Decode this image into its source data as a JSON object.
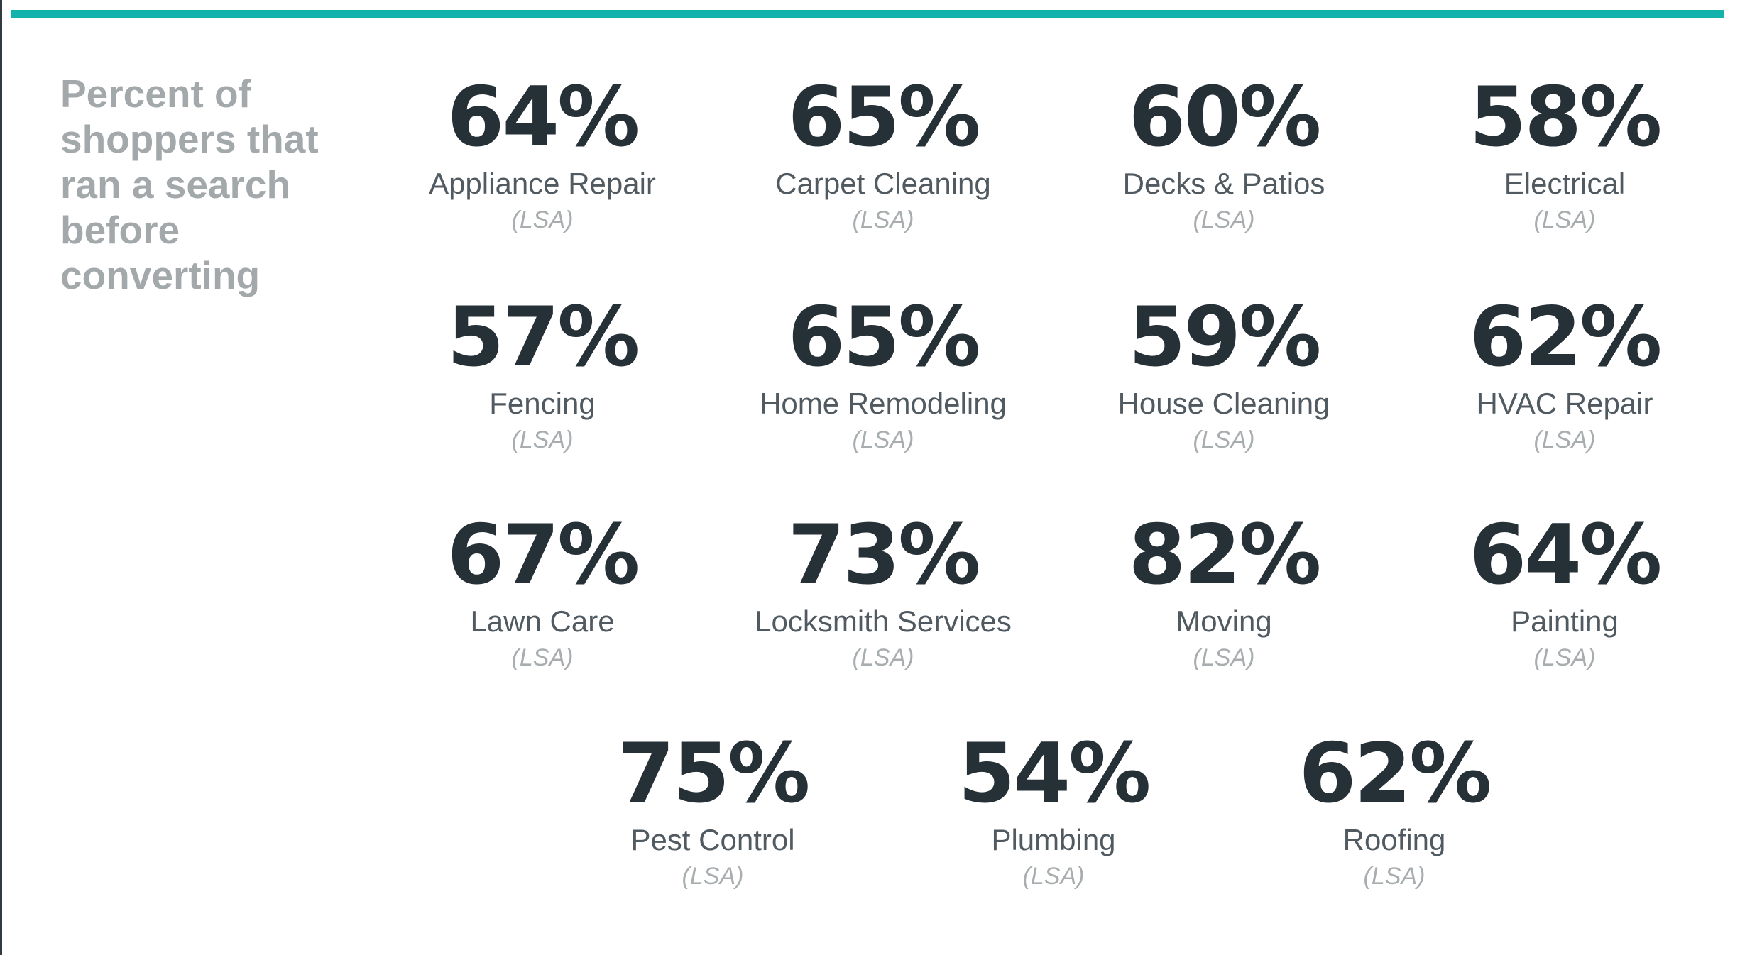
{
  "heading": "Percent of shoppers that ran a search before converting",
  "accent_color": "#13b3ad",
  "stats": [
    {
      "value": "64%",
      "label": "Appliance Repair",
      "note": "(LSA)"
    },
    {
      "value": "65%",
      "label": "Carpet Cleaning",
      "note": "(LSA)"
    },
    {
      "value": "60%",
      "label": "Decks & Patios",
      "note": "(LSA)"
    },
    {
      "value": "58%",
      "label": "Electrical",
      "note": "(LSA)"
    },
    {
      "value": "57%",
      "label": "Fencing",
      "note": "(LSA)"
    },
    {
      "value": "65%",
      "label": "Home Remodeling",
      "note": "(LSA)"
    },
    {
      "value": "59%",
      "label": "House Cleaning",
      "note": "(LSA)"
    },
    {
      "value": "62%",
      "label": "HVAC Repair",
      "note": "(LSA)"
    },
    {
      "value": "67%",
      "label": "Lawn Care",
      "note": "(LSA)"
    },
    {
      "value": "73%",
      "label": "Locksmith Services",
      "note": "(LSA)"
    },
    {
      "value": "82%",
      "label": "Moving",
      "note": "(LSA)"
    },
    {
      "value": "64%",
      "label": "Painting",
      "note": "(LSA)"
    },
    {
      "value": "75%",
      "label": "Pest Control",
      "note": "(LSA)"
    },
    {
      "value": "54%",
      "label": "Plumbing",
      "note": "(LSA)"
    },
    {
      "value": "62%",
      "label": "Roofing",
      "note": "(LSA)"
    }
  ]
}
